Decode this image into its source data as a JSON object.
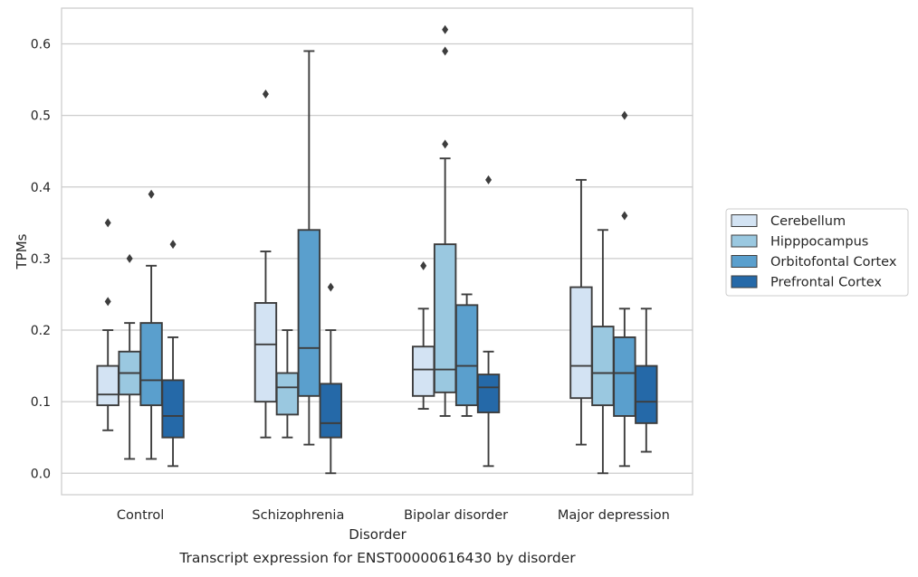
{
  "chart_data": {
    "type": "boxplot",
    "caption": "Transcript expression for ENST00000616430 by disorder",
    "xlabel": "Disorder",
    "ylabel": "TPMs",
    "ylim": [
      -0.03,
      0.65
    ],
    "yticks": [
      0.0,
      0.1,
      0.2,
      0.3,
      0.4,
      0.5,
      0.6
    ],
    "ytick_labels": [
      "0.0",
      "0.1",
      "0.2",
      "0.3",
      "0.4",
      "0.5",
      "0.6"
    ],
    "grid": "horizontal",
    "legend_position": "right",
    "categories": [
      "Control",
      "Schizophrenia",
      "Bipolar disorder",
      "Major depression"
    ],
    "series": [
      {
        "name": "Cerebellum",
        "color": "#d3e3f3",
        "boxes": [
          {
            "whislo": 0.06,
            "q1": 0.095,
            "med": 0.11,
            "q3": 0.15,
            "whishi": 0.2,
            "fliers": [
              0.24,
              0.35
            ]
          },
          {
            "whislo": 0.05,
            "q1": 0.1,
            "med": 0.18,
            "q3": 0.238,
            "whishi": 0.31,
            "fliers": [
              0.53
            ]
          },
          {
            "whislo": 0.09,
            "q1": 0.108,
            "med": 0.145,
            "q3": 0.177,
            "whishi": 0.23,
            "fliers": [
              0.29
            ]
          },
          {
            "whislo": 0.04,
            "q1": 0.105,
            "med": 0.15,
            "q3": 0.26,
            "whishi": 0.41,
            "fliers": []
          }
        ]
      },
      {
        "name": "Hipppocampus",
        "color": "#9ac8e0",
        "boxes": [
          {
            "whislo": 0.02,
            "q1": 0.11,
            "med": 0.14,
            "q3": 0.17,
            "whishi": 0.21,
            "fliers": [
              0.3
            ]
          },
          {
            "whislo": 0.05,
            "q1": 0.082,
            "med": 0.12,
            "q3": 0.14,
            "whishi": 0.2,
            "fliers": []
          },
          {
            "whislo": 0.08,
            "q1": 0.113,
            "med": 0.145,
            "q3": 0.32,
            "whishi": 0.44,
            "fliers": [
              0.46,
              0.59,
              0.62
            ]
          },
          {
            "whislo": 0.0,
            "q1": 0.095,
            "med": 0.14,
            "q3": 0.205,
            "whishi": 0.34,
            "fliers": []
          }
        ]
      },
      {
        "name": "Orbitofontal Cortex",
        "color": "#5a9fcd",
        "boxes": [
          {
            "whislo": 0.02,
            "q1": 0.095,
            "med": 0.13,
            "q3": 0.21,
            "whishi": 0.29,
            "fliers": [
              0.39
            ]
          },
          {
            "whislo": 0.04,
            "q1": 0.108,
            "med": 0.175,
            "q3": 0.34,
            "whishi": 0.59,
            "fliers": []
          },
          {
            "whislo": 0.08,
            "q1": 0.095,
            "med": 0.15,
            "q3": 0.235,
            "whishi": 0.25,
            "fliers": []
          },
          {
            "whislo": 0.01,
            "q1": 0.08,
            "med": 0.14,
            "q3": 0.19,
            "whishi": 0.23,
            "fliers": [
              0.36,
              0.5
            ]
          }
        ]
      },
      {
        "name": "Prefrontal Cortex",
        "color": "#2569a8",
        "boxes": [
          {
            "whislo": 0.01,
            "q1": 0.05,
            "med": 0.08,
            "q3": 0.13,
            "whishi": 0.19,
            "fliers": [
              0.32
            ]
          },
          {
            "whislo": 0.0,
            "q1": 0.05,
            "med": 0.07,
            "q3": 0.125,
            "whishi": 0.2,
            "fliers": [
              0.26
            ]
          },
          {
            "whislo": 0.01,
            "q1": 0.085,
            "med": 0.12,
            "q3": 0.138,
            "whishi": 0.17,
            "fliers": [
              0.41
            ]
          },
          {
            "whislo": 0.03,
            "q1": 0.07,
            "med": 0.1,
            "q3": 0.15,
            "whishi": 0.23,
            "fliers": []
          }
        ]
      }
    ]
  }
}
